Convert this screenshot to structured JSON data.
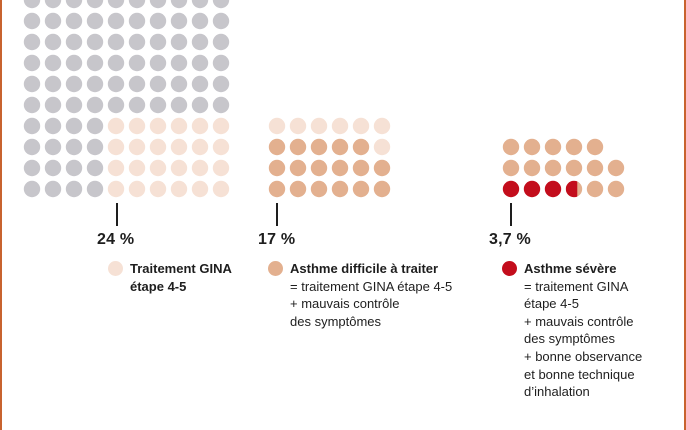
{
  "chart_data": {
    "type": "waffle",
    "colors": {
      "all": "#c7c6cb",
      "gina45": "#f6e1d5",
      "difficult": "#e3b08f",
      "severe": "#c30d1c"
    },
    "groups": [
      {
        "id": "gina45",
        "percent_label": "24 %",
        "value": 24,
        "legend_title": "Traitement GINA étape 4-5",
        "legend_lines": []
      },
      {
        "id": "difficult",
        "percent_label": "17 %",
        "value": 17,
        "legend_title": "Asthme difficile à traiter",
        "legend_lines": [
          "= traitement GINA étape 4-5",
          "+ mauvais contrôle",
          "des symptômes"
        ]
      },
      {
        "id": "severe",
        "percent_label": "3,7 %",
        "value": 3.7,
        "legend_title": "Asthme sévère",
        "legend_lines": [
          "= traitement GINA",
          "étape 4-5",
          "+ mauvais contrôle",
          "des symptômes",
          "+ bonne observance",
          "et bonne technique",
          "d’inhalation"
        ]
      }
    ]
  }
}
